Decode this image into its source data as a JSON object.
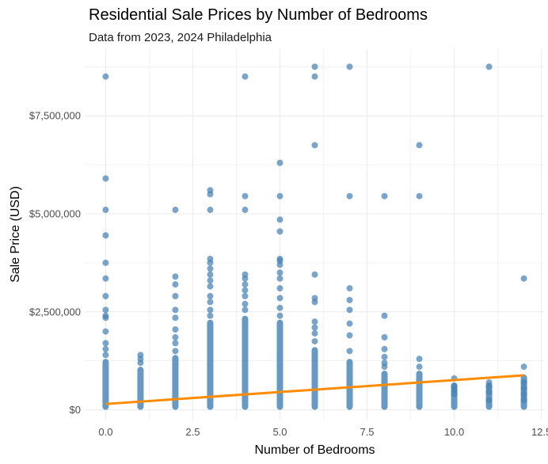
{
  "chart_data": {
    "type": "scatter",
    "title": "Residential Sale Prices by Number of Bedrooms",
    "subtitle": "Data from 2023, 2024 Philadelphia",
    "xlabel": "Number of Bedrooms",
    "ylabel": "Sale Price (USD)",
    "xlim": [
      -0.6,
      12.6
    ],
    "ylim": [
      -250000,
      9200000
    ],
    "x_ticks": [
      0.0,
      2.5,
      5.0,
      7.5,
      10.0,
      12.5
    ],
    "x_tick_labels": [
      "0.0",
      "2.5",
      "5.0",
      "7.5",
      "10.0",
      "12.5"
    ],
    "y_ticks": [
      0,
      2500000,
      5000000,
      7500000
    ],
    "y_tick_labels": [
      "$0",
      "$2,500,000",
      "$5,000,000",
      "$7,500,000"
    ],
    "grid": true,
    "colors": {
      "points": "#4682b4",
      "trend": "#ff8c00",
      "grid": "#ebebeb"
    },
    "point_columns": [
      {
        "x": 0,
        "dense_top": 1300000,
        "values": [
          1400000,
          1550000,
          1700000,
          2000000,
          2350000,
          2400000,
          2550000,
          2900000,
          3350000,
          3750000,
          4450000,
          5100000,
          5900000,
          8500000
        ]
      },
      {
        "x": 1,
        "dense_top": 1100000,
        "values": [
          1200000,
          1300000,
          1400000
        ]
      },
      {
        "x": 2,
        "dense_top": 1400000,
        "values": [
          1500000,
          1700000,
          1850000,
          2050000,
          2350000,
          2550000,
          2900000,
          3200000,
          3400000,
          5100000
        ]
      },
      {
        "x": 3,
        "dense_top": 2300000,
        "values": [
          2400000,
          2550000,
          2750000,
          2900000,
          3150000,
          3300000,
          3450000,
          3600000,
          3750000,
          3850000,
          5100000,
          5500000,
          5600000
        ]
      },
      {
        "x": 4,
        "dense_top": 2400000,
        "values": [
          2550000,
          2700000,
          2900000,
          3050000,
          3200000,
          3350000,
          3450000,
          5100000,
          5450000,
          8500000
        ]
      },
      {
        "x": 5,
        "dense_top": 2300000,
        "values": [
          2400000,
          2600000,
          2850000,
          3100000,
          3350000,
          3500000,
          3700000,
          3800000,
          3850000,
          4550000,
          4850000,
          5450000,
          6300000
        ]
      },
      {
        "x": 6,
        "dense_top": 1600000,
        "values": [
          1750000,
          1950000,
          2100000,
          2250000,
          2750000,
          2850000,
          3450000,
          6750000,
          8500000,
          8750000
        ]
      },
      {
        "x": 7,
        "dense_top": 1300000,
        "values": [
          1500000,
          1900000,
          2200000,
          2550000,
          2800000,
          3100000,
          5450000,
          8750000
        ]
      },
      {
        "x": 8,
        "dense_top": 1000000,
        "values": [
          1100000,
          1200000,
          1350000,
          1550000,
          1850000,
          2400000,
          5450000
        ]
      },
      {
        "x": 9,
        "dense_top": 1000000,
        "values": [
          1100000,
          1300000,
          5450000,
          6750000
        ]
      },
      {
        "x": 10,
        "dense_top": 700000,
        "values": [
          800000,
          600000,
          500000,
          400000
        ]
      },
      {
        "x": 11,
        "dense_top": 700000,
        "values": [
          250000,
          450000,
          600000,
          700000,
          8750000
        ]
      },
      {
        "x": 12,
        "dense_top": 900000,
        "values": [
          250000,
          400000,
          550000,
          700000,
          1100000,
          3350000
        ]
      }
    ],
    "trend_line": {
      "x": [
        0,
        12
      ],
      "y": [
        150000,
        880000
      ]
    }
  }
}
